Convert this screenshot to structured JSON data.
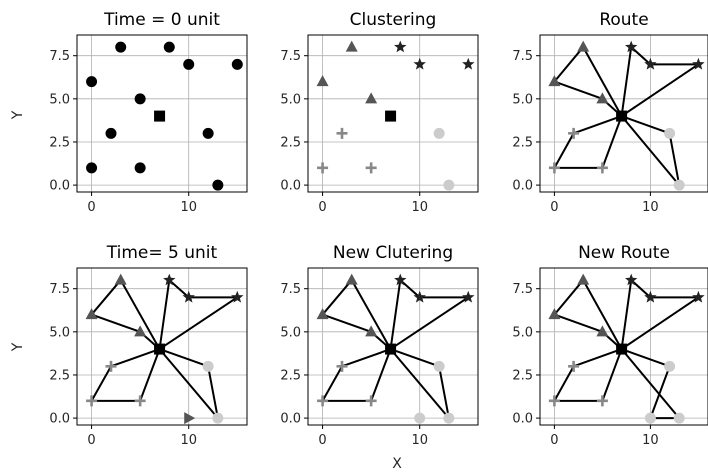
{
  "figure": {
    "xlabel": "X",
    "ylabel": "Y"
  },
  "chart_data": [
    {
      "type": "scatter",
      "title": "Time = 0 unit",
      "xticks": [
        "0",
        "10"
      ],
      "yticks": [
        "0.0",
        "2.5",
        "5.0",
        "7.5"
      ],
      "xlim": [
        -1.5,
        16
      ],
      "ylim": [
        -0.4,
        8.7
      ],
      "grid": true,
      "depot": {
        "x": 7,
        "y": 4
      },
      "points": [
        {
          "x": 0,
          "y": 6,
          "shape": "circle",
          "color": "#000000"
        },
        {
          "x": 3,
          "y": 8,
          "shape": "circle",
          "color": "#000000"
        },
        {
          "x": 8,
          "y": 8,
          "shape": "circle",
          "color": "#000000"
        },
        {
          "x": 10,
          "y": 7,
          "shape": "circle",
          "color": "#000000"
        },
        {
          "x": 15,
          "y": 7,
          "shape": "circle",
          "color": "#000000"
        },
        {
          "x": 5,
          "y": 5,
          "shape": "circle",
          "color": "#000000"
        },
        {
          "x": 2,
          "y": 3,
          "shape": "circle",
          "color": "#000000"
        },
        {
          "x": 12,
          "y": 3,
          "shape": "circle",
          "color": "#000000"
        },
        {
          "x": 0,
          "y": 1,
          "shape": "circle",
          "color": "#000000"
        },
        {
          "x": 5,
          "y": 1,
          "shape": "circle",
          "color": "#000000"
        },
        {
          "x": 13,
          "y": 0,
          "shape": "circle",
          "color": "#000000"
        }
      ],
      "routes": []
    },
    {
      "type": "scatter",
      "title": "Clustering",
      "xticks": [
        "0",
        "10"
      ],
      "yticks": [
        "0.0",
        "2.5",
        "5.0",
        "7.5"
      ],
      "xlim": [
        -1.5,
        16
      ],
      "ylim": [
        -0.4,
        8.7
      ],
      "grid": true,
      "depot": {
        "x": 7,
        "y": 4
      },
      "points": [
        {
          "x": 0,
          "y": 6,
          "shape": "triangle",
          "color": "#555555"
        },
        {
          "x": 3,
          "y": 8,
          "shape": "triangle",
          "color": "#555555"
        },
        {
          "x": 5,
          "y": 5,
          "shape": "triangle",
          "color": "#555555"
        },
        {
          "x": 8,
          "y": 8,
          "shape": "star",
          "color": "#222222"
        },
        {
          "x": 10,
          "y": 7,
          "shape": "star",
          "color": "#222222"
        },
        {
          "x": 15,
          "y": 7,
          "shape": "star",
          "color": "#222222"
        },
        {
          "x": 2,
          "y": 3,
          "shape": "plus",
          "color": "#888888"
        },
        {
          "x": 0,
          "y": 1,
          "shape": "plus",
          "color": "#888888"
        },
        {
          "x": 5,
          "y": 1,
          "shape": "plus",
          "color": "#888888"
        },
        {
          "x": 12,
          "y": 3,
          "shape": "circle",
          "color": "#cccccc"
        },
        {
          "x": 13,
          "y": 0,
          "shape": "circle",
          "color": "#cccccc"
        }
      ],
      "routes": []
    },
    {
      "type": "scatter",
      "title": "Route",
      "xticks": [
        "0",
        "10"
      ],
      "yticks": [
        "0.0",
        "2.5",
        "5.0",
        "7.5"
      ],
      "xlim": [
        -1.5,
        16
      ],
      "ylim": [
        -0.4,
        8.7
      ],
      "grid": true,
      "depot": {
        "x": 7,
        "y": 4
      },
      "points": [
        {
          "x": 0,
          "y": 6,
          "shape": "triangle",
          "color": "#555555"
        },
        {
          "x": 3,
          "y": 8,
          "shape": "triangle",
          "color": "#555555"
        },
        {
          "x": 5,
          "y": 5,
          "shape": "triangle",
          "color": "#555555"
        },
        {
          "x": 8,
          "y": 8,
          "shape": "star",
          "color": "#222222"
        },
        {
          "x": 10,
          "y": 7,
          "shape": "star",
          "color": "#222222"
        },
        {
          "x": 15,
          "y": 7,
          "shape": "star",
          "color": "#222222"
        },
        {
          "x": 2,
          "y": 3,
          "shape": "plus",
          "color": "#888888"
        },
        {
          "x": 0,
          "y": 1,
          "shape": "plus",
          "color": "#888888"
        },
        {
          "x": 5,
          "y": 1,
          "shape": "plus",
          "color": "#888888"
        },
        {
          "x": 12,
          "y": 3,
          "shape": "circle",
          "color": "#cccccc"
        },
        {
          "x": 13,
          "y": 0,
          "shape": "circle",
          "color": "#cccccc"
        }
      ],
      "routes": [
        [
          [
            7,
            4
          ],
          [
            3,
            8
          ],
          [
            0,
            6
          ],
          [
            5,
            5
          ],
          [
            7,
            4
          ]
        ],
        [
          [
            7,
            4
          ],
          [
            8,
            8
          ],
          [
            10,
            7
          ],
          [
            15,
            7
          ],
          [
            7,
            4
          ]
        ],
        [
          [
            7,
            4
          ],
          [
            2,
            3
          ],
          [
            0,
            1
          ],
          [
            5,
            1
          ],
          [
            7,
            4
          ]
        ],
        [
          [
            7,
            4
          ],
          [
            12,
            3
          ],
          [
            13,
            0
          ],
          [
            7,
            4
          ]
        ]
      ]
    },
    {
      "type": "scatter",
      "title": "Time= 5 unit",
      "xticks": [
        "0",
        "10"
      ],
      "yticks": [
        "0.0",
        "2.5",
        "5.0",
        "7.5"
      ],
      "xlim": [
        -1.5,
        16
      ],
      "ylim": [
        -0.4,
        8.7
      ],
      "grid": true,
      "depot": {
        "x": 7,
        "y": 4
      },
      "points": [
        {
          "x": 0,
          "y": 6,
          "shape": "triangle",
          "color": "#555555"
        },
        {
          "x": 3,
          "y": 8,
          "shape": "triangle",
          "color": "#555555"
        },
        {
          "x": 5,
          "y": 5,
          "shape": "triangle",
          "color": "#555555"
        },
        {
          "x": 8,
          "y": 8,
          "shape": "star",
          "color": "#222222"
        },
        {
          "x": 10,
          "y": 7,
          "shape": "star",
          "color": "#222222"
        },
        {
          "x": 15,
          "y": 7,
          "shape": "star",
          "color": "#222222"
        },
        {
          "x": 2,
          "y": 3,
          "shape": "plus",
          "color": "#888888"
        },
        {
          "x": 0,
          "y": 1,
          "shape": "plus",
          "color": "#888888"
        },
        {
          "x": 5,
          "y": 1,
          "shape": "plus",
          "color": "#888888"
        },
        {
          "x": 12,
          "y": 3,
          "shape": "circle",
          "color": "#cccccc"
        },
        {
          "x": 13,
          "y": 0,
          "shape": "circle",
          "color": "#cccccc"
        },
        {
          "x": 10,
          "y": 0,
          "shape": "triangle-right",
          "color": "#555555"
        }
      ],
      "routes": [
        [
          [
            7,
            4
          ],
          [
            3,
            8
          ],
          [
            0,
            6
          ],
          [
            5,
            5
          ],
          [
            7,
            4
          ]
        ],
        [
          [
            7,
            4
          ],
          [
            8,
            8
          ],
          [
            10,
            7
          ],
          [
            15,
            7
          ],
          [
            7,
            4
          ]
        ],
        [
          [
            7,
            4
          ],
          [
            2,
            3
          ],
          [
            0,
            1
          ],
          [
            5,
            1
          ],
          [
            7,
            4
          ]
        ],
        [
          [
            7,
            4
          ],
          [
            12,
            3
          ],
          [
            13,
            0
          ],
          [
            7,
            4
          ]
        ]
      ]
    },
    {
      "type": "scatter",
      "title": "New Clutering",
      "xticks": [
        "0",
        "10"
      ],
      "yticks": [
        "0.0",
        "2.5",
        "5.0",
        "7.5"
      ],
      "xlim": [
        -1.5,
        16
      ],
      "ylim": [
        -0.4,
        8.7
      ],
      "grid": true,
      "depot": {
        "x": 7,
        "y": 4
      },
      "points": [
        {
          "x": 0,
          "y": 6,
          "shape": "triangle",
          "color": "#555555"
        },
        {
          "x": 3,
          "y": 8,
          "shape": "triangle",
          "color": "#555555"
        },
        {
          "x": 5,
          "y": 5,
          "shape": "triangle",
          "color": "#555555"
        },
        {
          "x": 8,
          "y": 8,
          "shape": "star",
          "color": "#222222"
        },
        {
          "x": 10,
          "y": 7,
          "shape": "star",
          "color": "#222222"
        },
        {
          "x": 15,
          "y": 7,
          "shape": "star",
          "color": "#222222"
        },
        {
          "x": 2,
          "y": 3,
          "shape": "plus",
          "color": "#888888"
        },
        {
          "x": 0,
          "y": 1,
          "shape": "plus",
          "color": "#888888"
        },
        {
          "x": 5,
          "y": 1,
          "shape": "plus",
          "color": "#888888"
        },
        {
          "x": 12,
          "y": 3,
          "shape": "circle",
          "color": "#cccccc"
        },
        {
          "x": 13,
          "y": 0,
          "shape": "circle",
          "color": "#cccccc"
        },
        {
          "x": 10,
          "y": 0,
          "shape": "circle",
          "color": "#cccccc"
        }
      ],
      "routes": [
        [
          [
            7,
            4
          ],
          [
            3,
            8
          ],
          [
            0,
            6
          ],
          [
            5,
            5
          ],
          [
            7,
            4
          ]
        ],
        [
          [
            7,
            4
          ],
          [
            8,
            8
          ],
          [
            10,
            7
          ],
          [
            15,
            7
          ],
          [
            7,
            4
          ]
        ],
        [
          [
            7,
            4
          ],
          [
            2,
            3
          ],
          [
            0,
            1
          ],
          [
            5,
            1
          ],
          [
            7,
            4
          ]
        ],
        [
          [
            7,
            4
          ],
          [
            12,
            3
          ],
          [
            13,
            0
          ],
          [
            7,
            4
          ]
        ]
      ]
    },
    {
      "type": "scatter",
      "title": "New Route",
      "xticks": [
        "0",
        "10"
      ],
      "yticks": [
        "0.0",
        "2.5",
        "5.0",
        "7.5"
      ],
      "xlim": [
        -1.5,
        16
      ],
      "ylim": [
        -0.4,
        8.7
      ],
      "grid": true,
      "depot": {
        "x": 7,
        "y": 4
      },
      "points": [
        {
          "x": 0,
          "y": 6,
          "shape": "triangle",
          "color": "#555555"
        },
        {
          "x": 3,
          "y": 8,
          "shape": "triangle",
          "color": "#555555"
        },
        {
          "x": 5,
          "y": 5,
          "shape": "triangle",
          "color": "#555555"
        },
        {
          "x": 8,
          "y": 8,
          "shape": "star",
          "color": "#222222"
        },
        {
          "x": 10,
          "y": 7,
          "shape": "star",
          "color": "#222222"
        },
        {
          "x": 15,
          "y": 7,
          "shape": "star",
          "color": "#222222"
        },
        {
          "x": 2,
          "y": 3,
          "shape": "plus",
          "color": "#888888"
        },
        {
          "x": 0,
          "y": 1,
          "shape": "plus",
          "color": "#888888"
        },
        {
          "x": 5,
          "y": 1,
          "shape": "plus",
          "color": "#888888"
        },
        {
          "x": 12,
          "y": 3,
          "shape": "circle",
          "color": "#cccccc"
        },
        {
          "x": 13,
          "y": 0,
          "shape": "circle",
          "color": "#cccccc"
        },
        {
          "x": 10,
          "y": 0,
          "shape": "circle",
          "color": "#cccccc"
        }
      ],
      "routes": [
        [
          [
            7,
            4
          ],
          [
            3,
            8
          ],
          [
            0,
            6
          ],
          [
            5,
            5
          ],
          [
            7,
            4
          ]
        ],
        [
          [
            7,
            4
          ],
          [
            8,
            8
          ],
          [
            10,
            7
          ],
          [
            15,
            7
          ],
          [
            7,
            4
          ]
        ],
        [
          [
            7,
            4
          ],
          [
            2,
            3
          ],
          [
            0,
            1
          ],
          [
            5,
            1
          ],
          [
            7,
            4
          ]
        ],
        [
          [
            7,
            4
          ],
          [
            12,
            3
          ],
          [
            10,
            0
          ],
          [
            13,
            0
          ],
          [
            7,
            4
          ]
        ]
      ]
    }
  ]
}
